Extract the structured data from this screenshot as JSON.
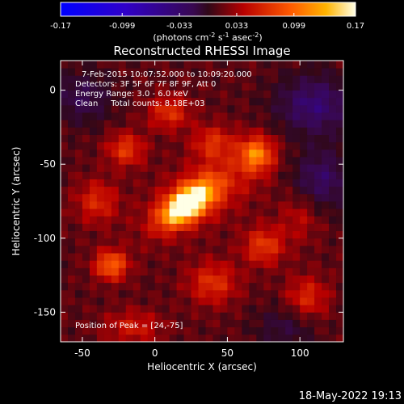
{
  "chart_data": {
    "type": "heatmap",
    "title": "Reconstructed RHESSI Image",
    "xlabel": "Heliocentric X (arcsec)",
    "ylabel": "Heliocentric Y (arcsec)",
    "xlim": [
      -65,
      130
    ],
    "ylim": [
      -170,
      20
    ],
    "xticks": [
      -50,
      0,
      50,
      100
    ],
    "xtick_labels": [
      "-50",
      "0",
      "50",
      "100"
    ],
    "yticks": [
      0,
      -50,
      -100,
      -150
    ],
    "ytick_labels": [
      "0",
      "-50",
      "-100",
      "-150"
    ],
    "colorbar": {
      "range": [
        -0.17,
        0.17
      ],
      "ticks": [
        -0.17,
        -0.099,
        -0.033,
        0.033,
        0.099,
        0.17
      ],
      "tick_labels": [
        "-0.17",
        "-0.099",
        "-0.033",
        "0.033",
        "0.099",
        "0.17"
      ],
      "units_prefix": "(photons cm",
      "units_exp1": "-2",
      "units_mid1": " s",
      "units_exp2": "-1",
      "units_mid2": " asec",
      "units_exp3": "-2",
      "units_suffix": ")"
    },
    "annotations": [
      "7-Feb-2015 10:07:52.000 to 10:09:20.000",
      "Detectors: 3F 5F 6F 7F 8F 9F, Att 0",
      "Energy Range: 3.0 - 6.0 keV",
      "Clean     Total counts: 8.18E+03"
    ],
    "peak_label": "Position of Peak = [24,-75]",
    "peak_position": [
      24,
      -75
    ],
    "sources": [
      {
        "x": 22,
        "y": -77,
        "amp": 0.17,
        "sx": 14,
        "sy": 7,
        "angle": 35
      },
      {
        "x": 35,
        "y": -68,
        "amp": 0.05,
        "sx": 30,
        "sy": 14,
        "angle": 30
      },
      {
        "x": 70,
        "y": -43,
        "amp": 0.09,
        "sx": 8,
        "sy": 8,
        "angle": 0
      },
      {
        "x": -30,
        "y": -118,
        "amp": 0.085,
        "sx": 8,
        "sy": 7,
        "angle": 0
      },
      {
        "x": -20,
        "y": -40,
        "amp": 0.06,
        "sx": 9,
        "sy": 8,
        "angle": 0
      },
      {
        "x": 10,
        "y": -15,
        "amp": 0.055,
        "sx": 10,
        "sy": 8,
        "angle": 0
      },
      {
        "x": 75,
        "y": -105,
        "amp": 0.06,
        "sx": 10,
        "sy": 9,
        "angle": 0
      },
      {
        "x": 40,
        "y": -130,
        "amp": 0.055,
        "sx": 12,
        "sy": 10,
        "angle": 0
      },
      {
        "x": -40,
        "y": -75,
        "amp": 0.05,
        "sx": 10,
        "sy": 10,
        "angle": 0
      },
      {
        "x": 105,
        "y": -140,
        "amp": 0.05,
        "sx": 10,
        "sy": 10,
        "angle": 0
      },
      {
        "x": 100,
        "y": -85,
        "amp": 0.03,
        "sx": 10,
        "sy": 12,
        "angle": 0
      },
      {
        "x": 40,
        "y": -35,
        "amp": 0.05,
        "sx": 10,
        "sy": 8,
        "angle": 0
      },
      {
        "x": -15,
        "y": -160,
        "amp": 0.04,
        "sx": 14,
        "sy": 8,
        "angle": 0
      }
    ],
    "negative_regions": [
      {
        "x": 110,
        "y": -10,
        "amp": -0.06,
        "sx": 18,
        "sy": 14
      },
      {
        "x": -50,
        "y": -5,
        "amp": -0.04,
        "sx": 14,
        "sy": 12
      },
      {
        "x": 115,
        "y": -60,
        "amp": -0.05,
        "sx": 14,
        "sy": 14
      },
      {
        "x": 90,
        "y": -160,
        "amp": -0.03,
        "sx": 14,
        "sy": 10
      }
    ]
  },
  "timestamp": "18-May-2022 19:13"
}
